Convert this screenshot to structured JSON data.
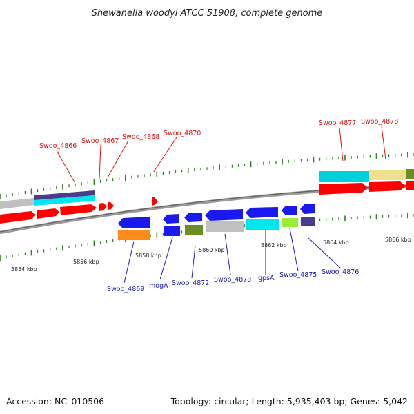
{
  "title": "Shewanella woodyi ATCC 51908, complete genome",
  "footer": {
    "accession": "Accession: NC_010506",
    "summary": "Topology: circular; Length: 5,935,403 bp; Genes: 5,042"
  },
  "colors": {
    "backbone": "#8a8a8a",
    "tick": "#2e7d1e",
    "forward_label": "#dd1111",
    "reverse_label": "#1a1ab4",
    "red": "#ff0000",
    "blue": "#1a1aee",
    "orange": "#ff8c1a",
    "olive": "#6b8e23",
    "gray": "#c0c0c0",
    "cyan": "#00e5ee",
    "lightgreen": "#99ee33",
    "darkslate": "#483d8b",
    "khaki": "#eee08f"
  },
  "scale": {
    "unit": "kbp",
    "tick_labels": [
      "5854 kbp",
      "5856 kbp",
      "5858 kbp",
      "5860 kbp",
      "5862 kbp",
      "5864 kbp",
      "5866 kbp"
    ]
  },
  "forward_labels": [
    "Swoo_4866",
    "Swoo_4867",
    "Swoo_4868",
    "Swoo_4870",
    "Swoo_4877",
    "Swoo_4878"
  ],
  "reverse_labels": [
    "Swoo_4869",
    "mogA",
    "Swoo_4872",
    "Swoo_4873",
    "gpsA",
    "Swoo_4875",
    "Swoo_4876"
  ]
}
